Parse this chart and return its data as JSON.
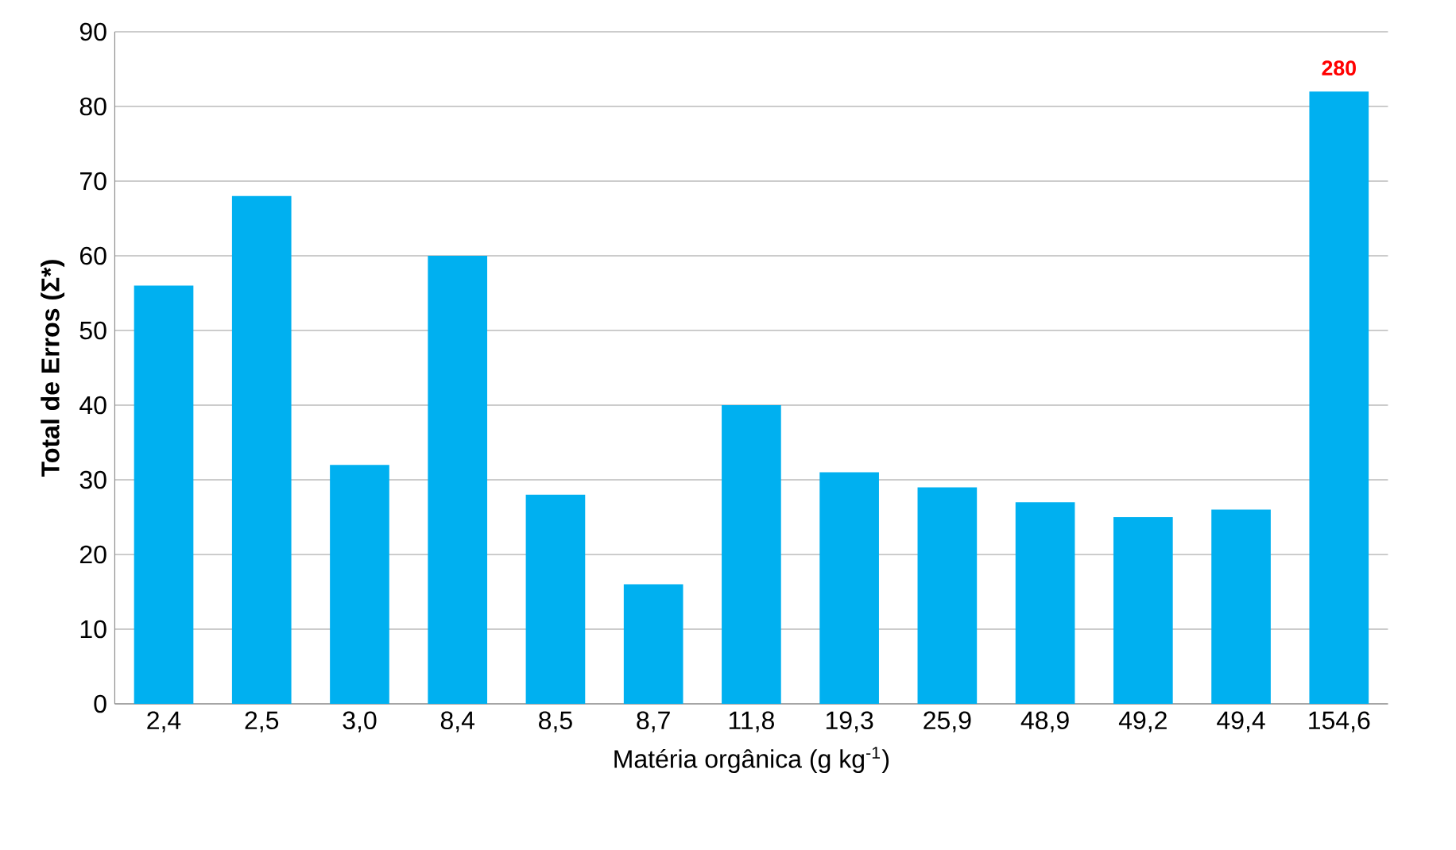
{
  "chart_data": {
    "type": "bar",
    "xlabel": "Matéria orgânica  (g kg$^{-1}$)",
    "ylabel": "Total de Erros (Σ*)",
    "categories": [
      "2,4",
      "2,5",
      "3,0",
      "8,4",
      "8,5",
      "8,7",
      "11,8",
      "19,3",
      "25,9",
      "48,9",
      "49,2",
      "49,4",
      "154,6"
    ],
    "values": [
      56,
      68,
      32,
      60,
      28,
      16,
      40,
      31,
      29,
      27,
      25,
      26,
      82
    ],
    "color": "#00b0f0",
    "ylim": [
      0,
      90
    ],
    "yticks": [
      0,
      10,
      20,
      30,
      40,
      50,
      60,
      70,
      80,
      90
    ],
    "grid": "y",
    "annotations": [
      {
        "text": "280",
        "x": "154,6",
        "y": 82
      }
    ]
  }
}
